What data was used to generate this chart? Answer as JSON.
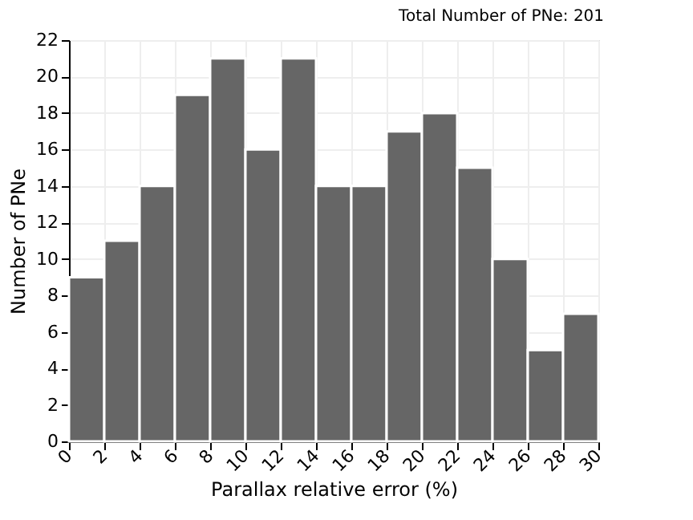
{
  "chart_data": {
    "type": "histogram",
    "title": "Total Number of PNe: 201",
    "xlabel": "Parallax relative error (%)",
    "ylabel": "Number of PNe",
    "bins": [
      0,
      2,
      4,
      6,
      8,
      10,
      12,
      14,
      16,
      18,
      20,
      22,
      24,
      26,
      28,
      30
    ],
    "values": [
      9,
      11,
      14,
      19,
      21,
      16,
      21,
      14,
      14,
      17,
      18,
      15,
      10,
      5,
      7
    ],
    "color": "#666666",
    "xlim": [
      0,
      30
    ],
    "xticks": [
      0,
      2,
      4,
      6,
      8,
      10,
      12,
      14,
      16,
      18,
      20,
      22,
      24,
      26,
      28,
      30
    ],
    "ylim": [
      0,
      22
    ],
    "yticks": [
      0,
      2,
      4,
      6,
      8,
      10,
      12,
      14,
      16,
      18,
      20,
      22
    ],
    "grid": true
  }
}
